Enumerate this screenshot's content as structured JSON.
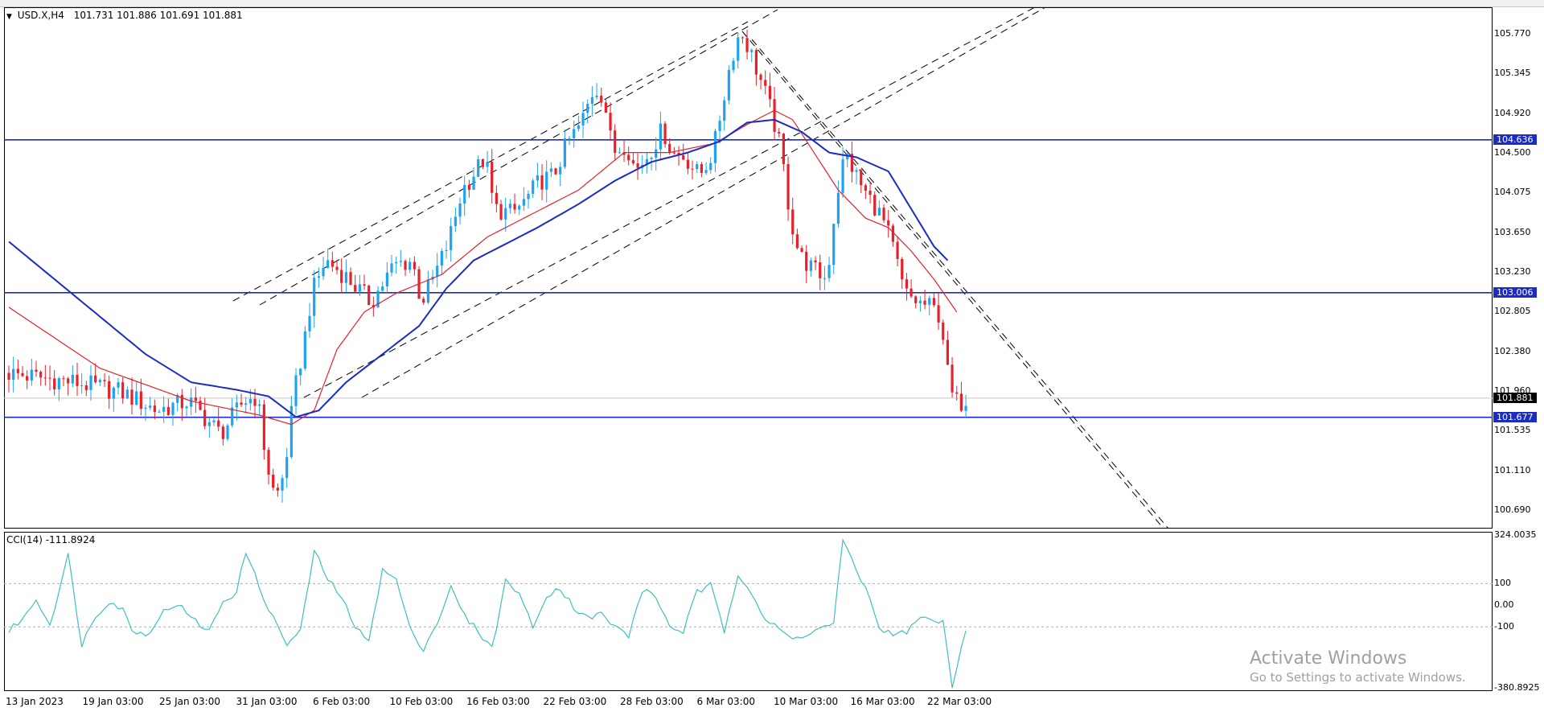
{
  "header": {
    "symbol": "USD.X,H4",
    "ohlc": "101.731 101.886 101.691 101.881"
  },
  "cci_header": {
    "label": "CCI(14) -111.8924"
  },
  "watermark": {
    "title": "Activate Windows",
    "subtitle": "Go to Settings to activate Windows."
  },
  "colors": {
    "bull": "#1fa3f0",
    "bear": "#e8202a",
    "ma_fast": "#e8202a",
    "ma_slow": "#1a2cc4",
    "hline": "#1a2cc4",
    "cci": "#3fbfbf"
  },
  "chart_data": [
    {
      "type": "candlestick",
      "symbol": "USD.X",
      "timeframe": "H4",
      "ylim": [
        100.49,
        106.05
      ],
      "y_ticks": [
        "105.770",
        "105.345",
        "104.920",
        "104.500",
        "104.075",
        "103.650",
        "103.230",
        "102.805",
        "102.380",
        "101.960",
        "101.535",
        "101.110",
        "100.690"
      ],
      "x_ticks": [
        "13 Jan 2023",
        "19 Jan 03:00",
        "25 Jan 03:00",
        "31 Jan 03:00",
        "6 Feb 03:00",
        "10 Feb 03:00",
        "16 Feb 03:00",
        "22 Feb 03:00",
        "28 Feb 03:00",
        "6 Mar 03:00",
        "10 Mar 03:00",
        "16 Mar 03:00",
        "22 Mar 03:00"
      ],
      "horizontal_levels": [
        {
          "value": 104.636,
          "label": "104.636"
        },
        {
          "value": 103.006,
          "label": "103.006"
        },
        {
          "value": 101.677,
          "label": "101.677"
        }
      ],
      "current_price": {
        "value": 101.881,
        "label": "101.881"
      },
      "price_path_keypoints": [
        [
          0,
          102.15
        ],
        [
          15,
          102.05
        ],
        [
          25,
          101.95
        ],
        [
          33,
          101.75
        ],
        [
          40,
          101.85
        ],
        [
          47,
          101.5
        ],
        [
          52,
          101.85
        ],
        [
          55,
          101.9
        ],
        [
          57,
          101.2
        ],
        [
          59,
          100.8
        ],
        [
          61,
          101.1
        ],
        [
          63,
          101.9
        ],
        [
          65,
          102.4
        ],
        [
          67,
          103.0
        ],
        [
          70,
          103.35
        ],
        [
          74,
          103.2
        ],
        [
          77,
          103.05
        ],
        [
          80,
          102.9
        ],
        [
          85,
          103.3
        ],
        [
          89,
          103.35
        ],
        [
          91,
          102.9
        ],
        [
          94,
          103.2
        ],
        [
          97,
          103.55
        ],
        [
          100,
          104.1
        ],
        [
          105,
          104.45
        ],
        [
          107,
          103.9
        ],
        [
          111,
          103.85
        ],
        [
          114,
          104.0
        ],
        [
          117,
          104.2
        ],
        [
          120,
          104.25
        ],
        [
          123,
          104.6
        ],
        [
          126,
          104.8
        ],
        [
          129,
          105.2
        ],
        [
          131,
          105.1
        ],
        [
          133,
          104.5
        ],
        [
          136,
          104.6
        ],
        [
          138,
          104.3
        ],
        [
          141,
          104.5
        ],
        [
          144,
          104.75
        ],
        [
          146,
          104.5
        ],
        [
          149,
          104.45
        ],
        [
          152,
          104.25
        ],
        [
          155,
          104.5
        ],
        [
          157,
          105.0
        ],
        [
          159,
          105.5
        ],
        [
          161,
          105.8
        ],
        [
          163,
          105.6
        ],
        [
          166,
          105.2
        ],
        [
          168,
          104.9
        ],
        [
          170,
          104.5
        ],
        [
          172,
          103.8
        ],
        [
          174,
          103.4
        ],
        [
          177,
          103.25
        ],
        [
          180,
          103.15
        ],
        [
          182,
          104.0
        ],
        [
          184,
          104.5
        ],
        [
          186,
          104.3
        ],
        [
          188,
          104.1
        ],
        [
          191,
          103.9
        ],
        [
          193,
          103.7
        ],
        [
          195,
          103.4
        ],
        [
          197,
          103.0
        ],
        [
          200,
          102.9
        ],
        [
          203,
          102.85
        ],
        [
          205,
          102.75
        ],
        [
          207,
          101.95
        ],
        [
          209,
          101.8
        ],
        [
          210,
          101.88
        ]
      ],
      "series": [
        {
          "name": "",
          "type": "line",
          "color": "#e8202a",
          "keypoints": [
            [
              0,
              102.85
            ],
            [
              20,
              102.2
            ],
            [
              40,
              101.85
            ],
            [
              55,
              101.7
            ],
            [
              62,
              101.6
            ],
            [
              67,
              101.75
            ],
            [
              72,
              102.4
            ],
            [
              78,
              102.8
            ],
            [
              85,
              103.0
            ],
            [
              95,
              103.2
            ],
            [
              105,
              103.6
            ],
            [
              115,
              103.85
            ],
            [
              125,
              104.1
            ],
            [
              135,
              104.5
            ],
            [
              145,
              104.5
            ],
            [
              155,
              104.6
            ],
            [
              162,
              104.8
            ],
            [
              168,
              104.95
            ],
            [
              172,
              104.85
            ],
            [
              176,
              104.55
            ],
            [
              182,
              104.1
            ],
            [
              188,
              103.8
            ],
            [
              193,
              103.7
            ],
            [
              198,
              103.45
            ],
            [
              203,
              103.15
            ],
            [
              208,
              102.8
            ]
          ]
        },
        {
          "name": "",
          "type": "line",
          "color": "#1a2cc4",
          "keypoints": [
            [
              0,
              103.55
            ],
            [
              15,
              102.95
            ],
            [
              30,
              102.35
            ],
            [
              40,
              102.05
            ],
            [
              50,
              101.97
            ],
            [
              57,
              101.9
            ],
            [
              63,
              101.68
            ],
            [
              68,
              101.75
            ],
            [
              74,
              102.05
            ],
            [
              82,
              102.35
            ],
            [
              90,
              102.65
            ],
            [
              96,
              103.05
            ],
            [
              102,
              103.35
            ],
            [
              108,
              103.5
            ],
            [
              116,
              103.7
            ],
            [
              125,
              103.95
            ],
            [
              133,
              104.2
            ],
            [
              141,
              104.4
            ],
            [
              149,
              104.5
            ],
            [
              156,
              104.62
            ],
            [
              162,
              104.82
            ],
            [
              168,
              104.85
            ],
            [
              174,
              104.72
            ],
            [
              180,
              104.5
            ],
            [
              186,
              104.45
            ],
            [
              193,
              104.3
            ],
            [
              198,
              103.9
            ],
            [
              203,
              103.5
            ],
            [
              206,
              103.35
            ]
          ]
        }
      ]
    },
    {
      "type": "line",
      "name": "CCI(14)",
      "last_value": -111.8924,
      "ylim": [
        -380.8925,
        324.0035
      ],
      "y_ticks": [
        "324.0035",
        "100",
        "0.00",
        "-100",
        "-380.8925"
      ],
      "levels": [
        100,
        -100
      ],
      "keypoints": [
        [
          0,
          -120
        ],
        [
          4,
          -40
        ],
        [
          6,
          30
        ],
        [
          9,
          -90
        ],
        [
          13,
          230
        ],
        [
          16,
          -180
        ],
        [
          19,
          -50
        ],
        [
          22,
          20
        ],
        [
          25,
          -20
        ],
        [
          27,
          -110
        ],
        [
          30,
          -140
        ],
        [
          34,
          -30
        ],
        [
          37,
          10
        ],
        [
          40,
          -60
        ],
        [
          44,
          -120
        ],
        [
          47,
          20
        ],
        [
          50,
          60
        ],
        [
          52,
          250
        ],
        [
          55,
          80
        ],
        [
          58,
          -60
        ],
        [
          61,
          -180
        ],
        [
          64,
          -120
        ],
        [
          67,
          250
        ],
        [
          70,
          120
        ],
        [
          73,
          40
        ],
        [
          76,
          -110
        ],
        [
          79,
          -150
        ],
        [
          82,
          160
        ],
        [
          85,
          120
        ],
        [
          88,
          -110
        ],
        [
          91,
          -200
        ],
        [
          94,
          -80
        ],
        [
          97,
          80
        ],
        [
          100,
          -50
        ],
        [
          103,
          -120
        ],
        [
          106,
          -200
        ],
        [
          109,
          110
        ],
        [
          112,
          60
        ],
        [
          115,
          -110
        ],
        [
          118,
          50
        ],
        [
          121,
          80
        ],
        [
          124,
          -10
        ],
        [
          127,
          -60
        ],
        [
          130,
          -40
        ],
        [
          133,
          -100
        ],
        [
          136,
          -140
        ],
        [
          139,
          70
        ],
        [
          142,
          40
        ],
        [
          145,
          -100
        ],
        [
          148,
          -120
        ],
        [
          151,
          60
        ],
        [
          154,
          90
        ],
        [
          157,
          -120
        ],
        [
          160,
          150
        ],
        [
          163,
          60
        ],
        [
          166,
          -70
        ],
        [
          169,
          -110
        ],
        [
          172,
          -160
        ],
        [
          175,
          -130
        ],
        [
          178,
          -110
        ],
        [
          181,
          -80
        ],
        [
          183,
          300
        ],
        [
          185,
          200
        ],
        [
          188,
          80
        ],
        [
          191,
          -100
        ],
        [
          194,
          -140
        ],
        [
          197,
          -120
        ],
        [
          200,
          -60
        ],
        [
          203,
          -70
        ],
        [
          205,
          -80
        ],
        [
          207,
          -380
        ],
        [
          209,
          -180
        ],
        [
          210,
          -112
        ]
      ]
    }
  ]
}
